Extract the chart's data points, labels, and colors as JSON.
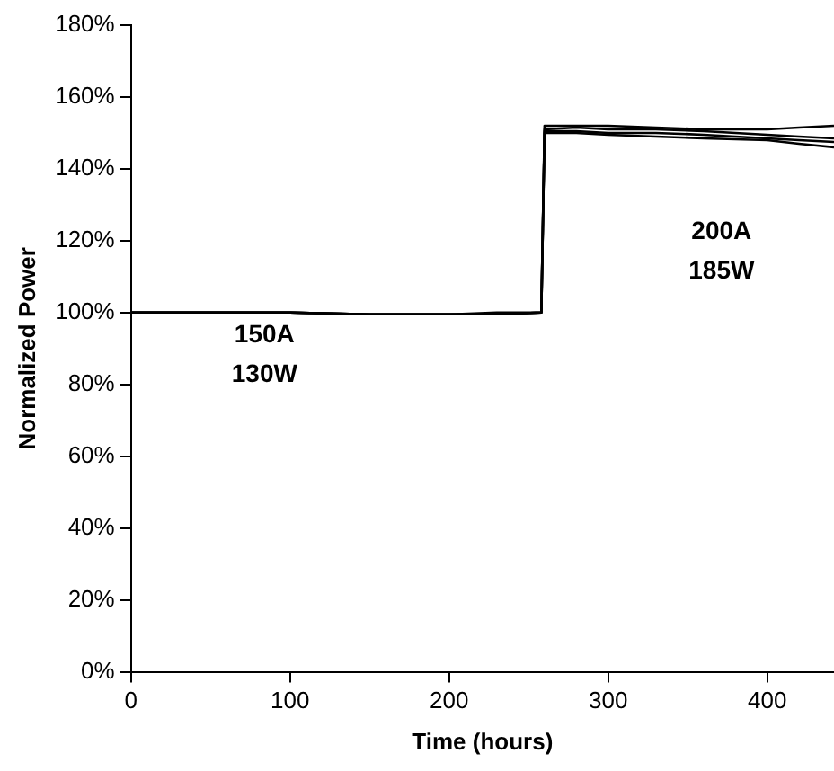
{
  "chart_data": {
    "type": "line",
    "xlabel": "Time (hours)",
    "ylabel": "Normalized Power",
    "xlim": [
      0,
      442
    ],
    "xticks": [
      0,
      100,
      200,
      300,
      400
    ],
    "ylim": [
      0,
      180
    ],
    "yticks": [
      {
        "value": 0,
        "label": "0%"
      },
      {
        "value": 20,
        "label": "20%"
      },
      {
        "value": 40,
        "label": "40%"
      },
      {
        "value": 60,
        "label": "60%"
      },
      {
        "value": 80,
        "label": "80%"
      },
      {
        "value": 100,
        "label": "100%"
      },
      {
        "value": 120,
        "label": "120%"
      },
      {
        "value": 140,
        "label": "140%"
      },
      {
        "value": 160,
        "label": "160%"
      },
      {
        "value": 180,
        "label": "180%"
      }
    ],
    "grid": false,
    "legend": false,
    "marker": "none",
    "line_style": "solid",
    "x": [
      0,
      50,
      100,
      150,
      200,
      230,
      258,
      260,
      280,
      300,
      330,
      360,
      400,
      420,
      442
    ],
    "series": [
      {
        "color": "#000000",
        "values": [
          100,
          100,
          100,
          99.5,
          99.5,
          100,
          100,
          152,
          152,
          152,
          151.5,
          151,
          151,
          151.5,
          152
        ]
      },
      {
        "color": "#000000",
        "values": [
          100,
          100,
          100,
          99.5,
          99.5,
          99.5,
          100,
          151,
          151.5,
          151,
          151,
          150.5,
          149.5,
          149,
          148.5
        ]
      },
      {
        "color": "#000000",
        "values": [
          100,
          100,
          100,
          99.5,
          99.5,
          99.5,
          100,
          150.5,
          150.5,
          150,
          150,
          149.5,
          148.5,
          148,
          147.5
        ]
      },
      {
        "color": "#000000",
        "values": [
          100,
          100,
          100,
          99.5,
          99.5,
          99.5,
          100,
          150,
          150,
          149.5,
          149,
          148.5,
          148,
          147,
          146
        ]
      }
    ],
    "annotations": [
      "150A\n130W",
      "200A\n185W"
    ]
  }
}
